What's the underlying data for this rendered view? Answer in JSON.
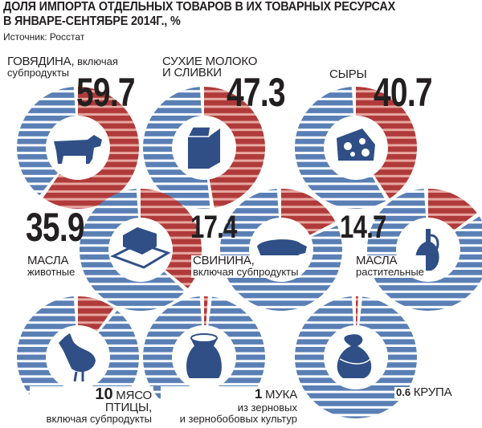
{
  "header": {
    "title_line1": "ДОЛЯ ИМПОРТА ОТДЕЛЬНЫХ ТОВАРОВ В ИХ ТОВАРНЫХ РЕСУРСАХ",
    "title_line2": "В ЯНВАРЕ-СЕНТЯБРЕ 2014Г., %",
    "source": "Источник: Росстат"
  },
  "colors": {
    "import": "#b03a3a",
    "import_light": "#e6a8a0",
    "domestic": "#5a7fb5",
    "domestic_light": "#c9d4e6",
    "icon": "#2f4f86"
  },
  "chart_data": {
    "type": "pie",
    "unit": "%",
    "items": [
      {
        "label_main": "ГОВЯДИНА,",
        "label_sub": "включая",
        "label_sub2": "субпродукты",
        "value": 59.7,
        "value_text": "59.7",
        "icon": "cow-icon"
      },
      {
        "label_main": "СУХИЕ МОЛОКО",
        "label_sub": "И СЛИВКИ",
        "value": 47.3,
        "value_text": "47.3",
        "icon": "milk-carton-icon"
      },
      {
        "label_main": "СЫРЫ",
        "value": 40.7,
        "value_text": "40.7",
        "icon": "cheese-icon"
      },
      {
        "label_main": "МАСЛА",
        "label_sub": "животные",
        "value": 35.9,
        "value_text": "35.9",
        "icon": "butter-icon"
      },
      {
        "label_main": "СВИНИНА,",
        "label_sub": "включая субпродукты",
        "value": 17.4,
        "value_text": "17.4",
        "icon": "pig-icon"
      },
      {
        "label_main": "МАСЛА",
        "label_sub": "растительные",
        "value": 14.7,
        "value_text": "14.7",
        "icon": "oil-bottle-icon"
      },
      {
        "label_main": "МЯСО",
        "label_sub": "ПТИЦЫ,",
        "label_sub2": "включая субпродукты",
        "value": 10,
        "value_text": "10",
        "icon": "chicken-icon"
      },
      {
        "label_main": "МУКА",
        "label_sub": "из зерновых",
        "label_sub2": "и зернобобовых культур",
        "value": 1,
        "value_text": "1",
        "icon": "flour-sack-icon"
      },
      {
        "label_main": "КРУПА",
        "value": 0.6,
        "value_text": "0.6",
        "icon": "grain-bag-icon"
      }
    ]
  }
}
